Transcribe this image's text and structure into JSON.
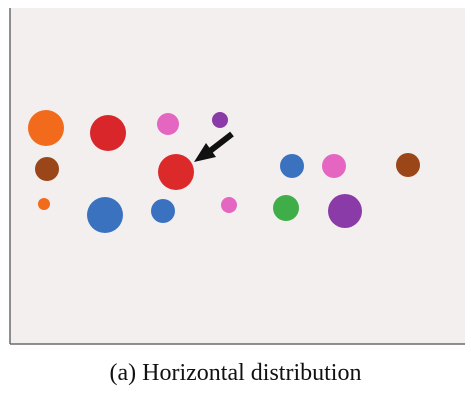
{
  "figure": {
    "caption": "(a)  Horizontal distribution",
    "panel_background": "#f3efee",
    "axis_color": "#6b6b6b",
    "circles": [
      {
        "id": "orange-large",
        "color": "#f26a1b"
      },
      {
        "id": "red-large-top",
        "color": "#d8262b"
      },
      {
        "id": "pink-top",
        "color": "#e466c0"
      },
      {
        "id": "purple-small-top",
        "color": "#8a3ba8"
      },
      {
        "id": "brown-left",
        "color": "#9a4618"
      },
      {
        "id": "red-highlighted",
        "color": "#dc2a2a"
      },
      {
        "id": "blue-middle-right",
        "color": "#3a72c0"
      },
      {
        "id": "pink-right",
        "color": "#e466c0"
      },
      {
        "id": "brown-right",
        "color": "#9a4618"
      },
      {
        "id": "orange-small",
        "color": "#f26a1b"
      },
      {
        "id": "blue-large-bottom",
        "color": "#3a72c0"
      },
      {
        "id": "blue-bottom",
        "color": "#3a72c0"
      },
      {
        "id": "pink-small-bottom",
        "color": "#e466c0"
      },
      {
        "id": "green-bottom",
        "color": "#3fae48"
      },
      {
        "id": "purple-large-bottom",
        "color": "#8a3ba8"
      }
    ],
    "arrow": {
      "color": "#111111",
      "target": "red-highlighted"
    }
  }
}
